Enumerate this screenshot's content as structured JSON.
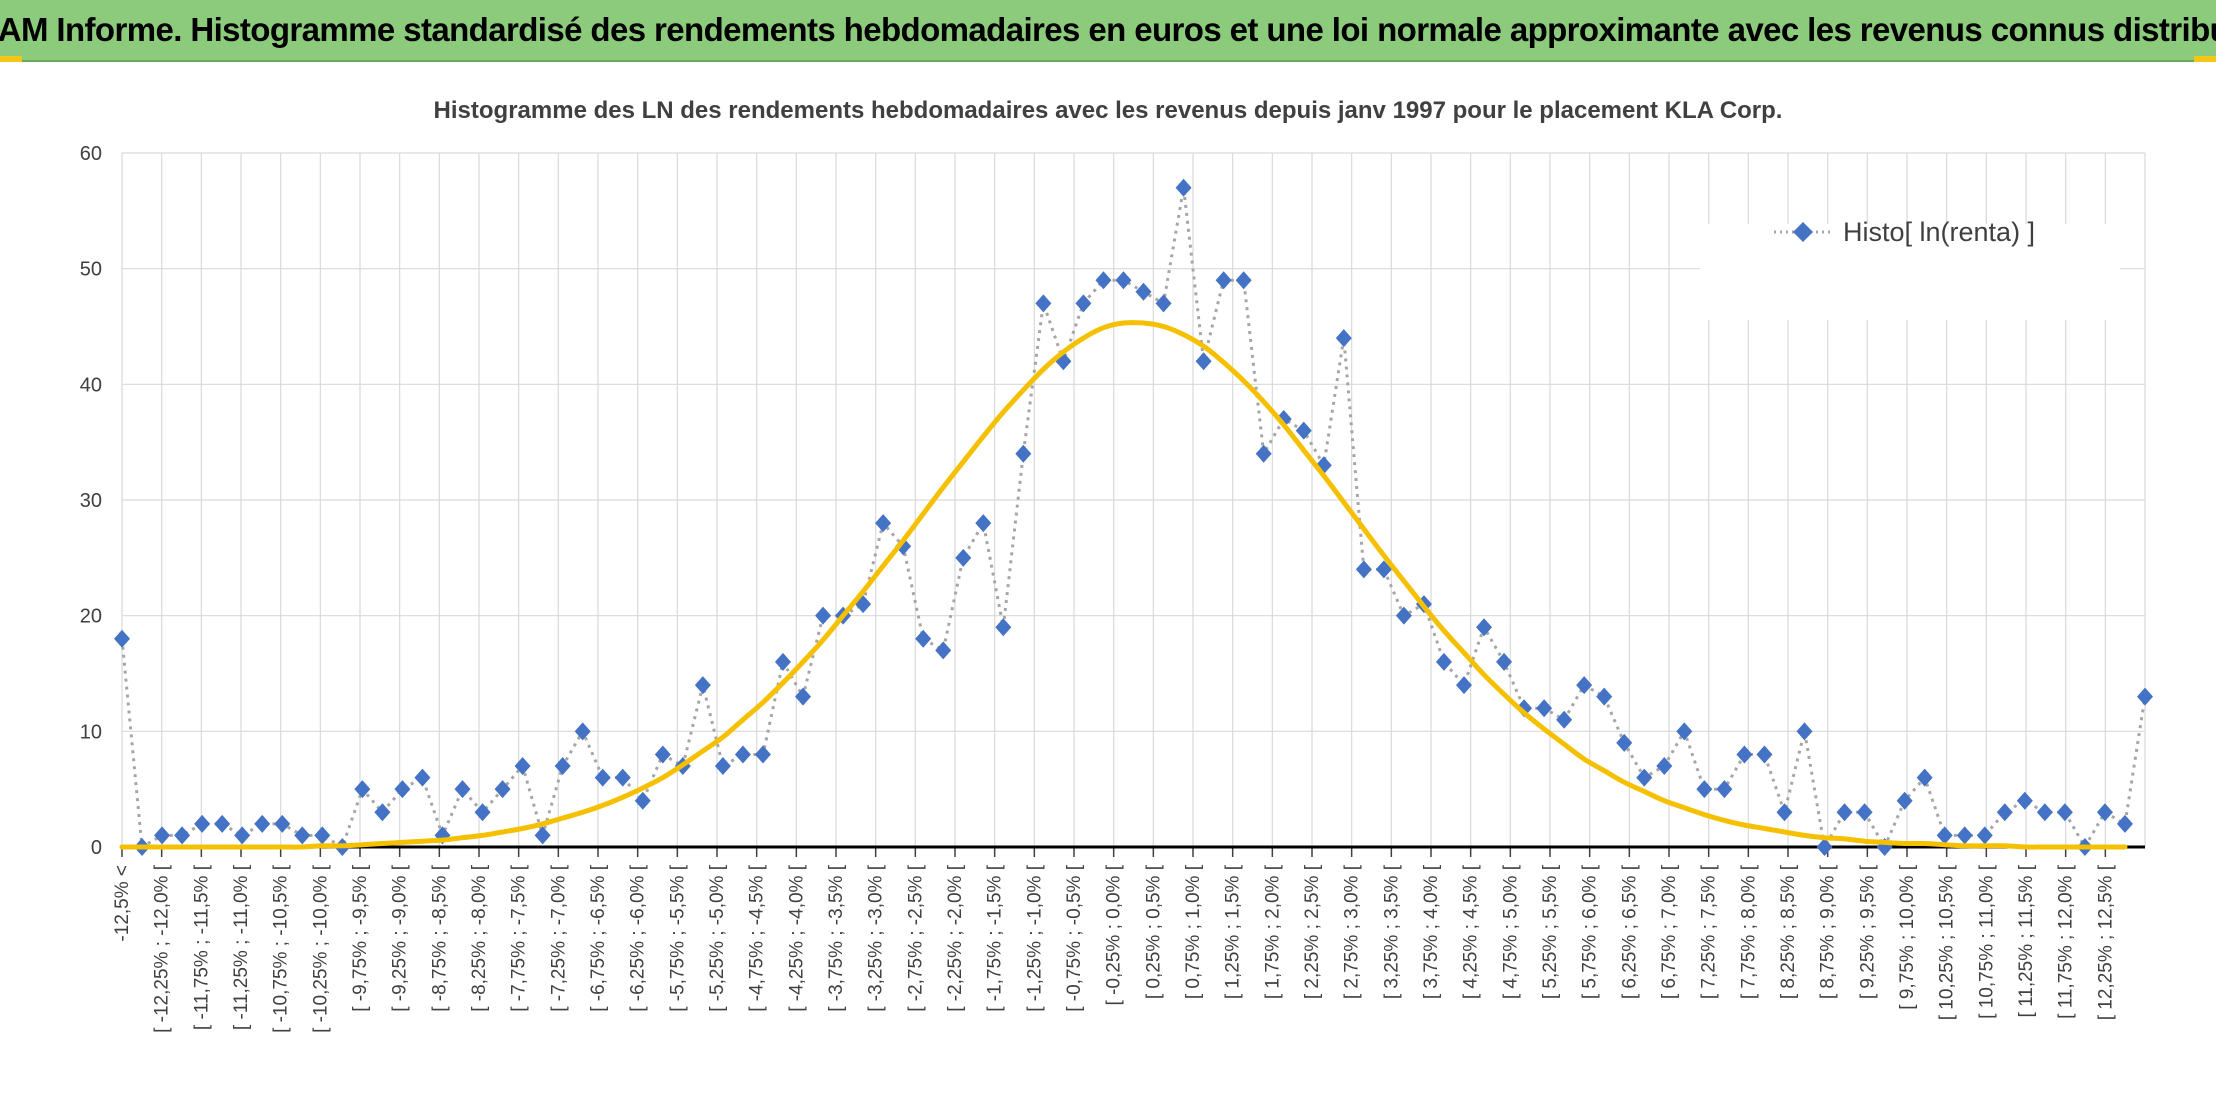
{
  "header": {
    "title": "ADAM Informe. Histogramme standardisé des rendements hebdomadaires en euros et une loi normale approximante avec les revenus connus distribués"
  },
  "colors": {
    "header_bg": "#8dcb7c",
    "accent": "#f5c518",
    "series_marker": "#4472c4",
    "series_line": "#a6a6a6",
    "normal_curve": "#f5c000",
    "grid": "#d9d9d9"
  },
  "chart_data": {
    "type": "line",
    "title": "Histogramme des LN des rendements hebdomadaires avec les revenus depuis janv 1997 pour le placement KLA Corp.",
    "xlabel": "",
    "ylabel": "",
    "ylim": [
      0,
      60
    ],
    "yticks": [
      0,
      10,
      20,
      30,
      40,
      50,
      60
    ],
    "grid": true,
    "legend_position": "top-right",
    "x_tick_labels": [
      "-12,5% <",
      "[ -12,25% ; -12,0% [",
      "[ -11,75% ; -11,5% [",
      "[ -11,25% ; -11,0% [",
      "[ -10,75% ; -10,5% [",
      "[ -10,25% ; -10,0% [",
      "[ -9,75% ; -9,5% [",
      "[ -9,25% ; -9,0% [",
      "[ -8,75% ; -8,5% [",
      "[ -8,25% ; -8,0% [",
      "[ -7,75% ; -7,5% [",
      "[ -7,25% ; -7,0% [",
      "[ -6,75% ; -6,5% [",
      "[ -6,25% ; -6,0% [",
      "[ -5,75% ; -5,5% [",
      "[ -5,25% ; -5,0% [",
      "[ -4,75% ; -4,5% [",
      "[ -4,25% ; -4,0% [",
      "[ -3,75% ; -3,5% [",
      "[ -3,25% ; -3,0% [",
      "[ -2,75% ; -2,5% [",
      "[ -2,25% ; -2,0% [",
      "[ -1,75% ; -1,5% [",
      "[ -1,25% ; -1,0% [",
      "[ -0,75% ; -0,5% [",
      "[ -0,25% ; 0,0% [",
      "[ 0,25% ; 0,5% [",
      "[ 0,75% ; 1,0% [",
      "[ 1,25% ; 1,5% [",
      "[ 1,75% ; 2,0% [",
      "[ 2,25% ; 2,5% [",
      "[ 2,75% ; 3,0% [",
      "[ 3,25% ; 3,5% [",
      "[ 3,75% ; 4,0% [",
      "[ 4,25% ; 4,5% [",
      "[ 4,75% ; 5,0% [",
      "[ 5,25% ; 5,5% [",
      "[ 5,75% ; 6,0% [",
      "[ 6,25% ; 6,5% [",
      "[ 6,75% ; 7,0% [",
      "[ 7,25% ; 7,5% [",
      "[ 7,75% ; 8,0% [",
      "[ 8,25% ; 8,5% [",
      "[ 8,75% ; 9,0% [",
      "[ 9,25% ; 9,5% [",
      "[ 9,75% ; 10,0% [",
      "[ 10,25% ; 10,5% [",
      "[ 10,75% ; 11,0% [",
      "[ 11,25% ; 11,5% [",
      "[ 11,75% ; 12,0% [",
      "[ 12,25% ; 12,5% ["
    ],
    "series": [
      {
        "name": "Histo[ ln(renta) ]",
        "style": "dotted-line-diamond",
        "values": [
          18,
          0,
          1,
          1,
          2,
          2,
          1,
          2,
          2,
          1,
          1,
          0,
          5,
          3,
          5,
          6,
          1,
          5,
          3,
          5,
          7,
          1,
          7,
          10,
          6,
          6,
          4,
          8,
          7,
          14,
          7,
          8,
          8,
          16,
          13,
          20,
          20,
          21,
          28,
          26,
          18,
          17,
          25,
          28,
          19,
          34,
          47,
          42,
          47,
          49,
          49,
          48,
          47,
          57,
          42,
          49,
          49,
          34,
          37,
          36,
          33,
          44,
          24,
          24,
          20,
          21,
          16,
          14,
          19,
          16,
          12,
          12,
          11,
          14,
          13,
          9,
          6,
          7,
          10,
          5,
          5,
          8,
          8,
          3,
          10,
          0,
          3,
          3,
          0,
          4,
          6,
          1,
          1,
          1,
          3,
          4,
          3,
          3,
          0,
          3,
          2,
          13
        ]
      },
      {
        "style": "solid-curve",
        "values": [
          0,
          0,
          0,
          0,
          0,
          0,
          0,
          0,
          0,
          0,
          0.1,
          0.1,
          0.2,
          0.3,
          0.4,
          0.5,
          0.6,
          0.8,
          1.0,
          1.3,
          1.6,
          2.0,
          2.5,
          3.0,
          3.6,
          4.3,
          5.1,
          6.0,
          7.1,
          8.3,
          9.5,
          11.0,
          12.5,
          14.2,
          16.0,
          17.9,
          20.0,
          22.1,
          24.3,
          26.5,
          28.8,
          31.1,
          33.3,
          35.5,
          37.6,
          39.5,
          41.3,
          42.8,
          44.0,
          44.9,
          45.3,
          45.3,
          45.0,
          44.3,
          43.3,
          41.9,
          40.3,
          38.5,
          36.5,
          34.3,
          32.1,
          29.8,
          27.5,
          25.2,
          23.0,
          20.8,
          18.7,
          16.8,
          14.9,
          13.2,
          11.6,
          10.2,
          8.9,
          7.6,
          6.6,
          5.6,
          4.8,
          4.0,
          3.4,
          2.8,
          2.3,
          1.9,
          1.6,
          1.3,
          1.0,
          0.8,
          0.7,
          0.5,
          0.4,
          0.3,
          0.3,
          0.2,
          0.1,
          0.1,
          0.1,
          0,
          0,
          0,
          0,
          0,
          0
        ]
      }
    ]
  }
}
